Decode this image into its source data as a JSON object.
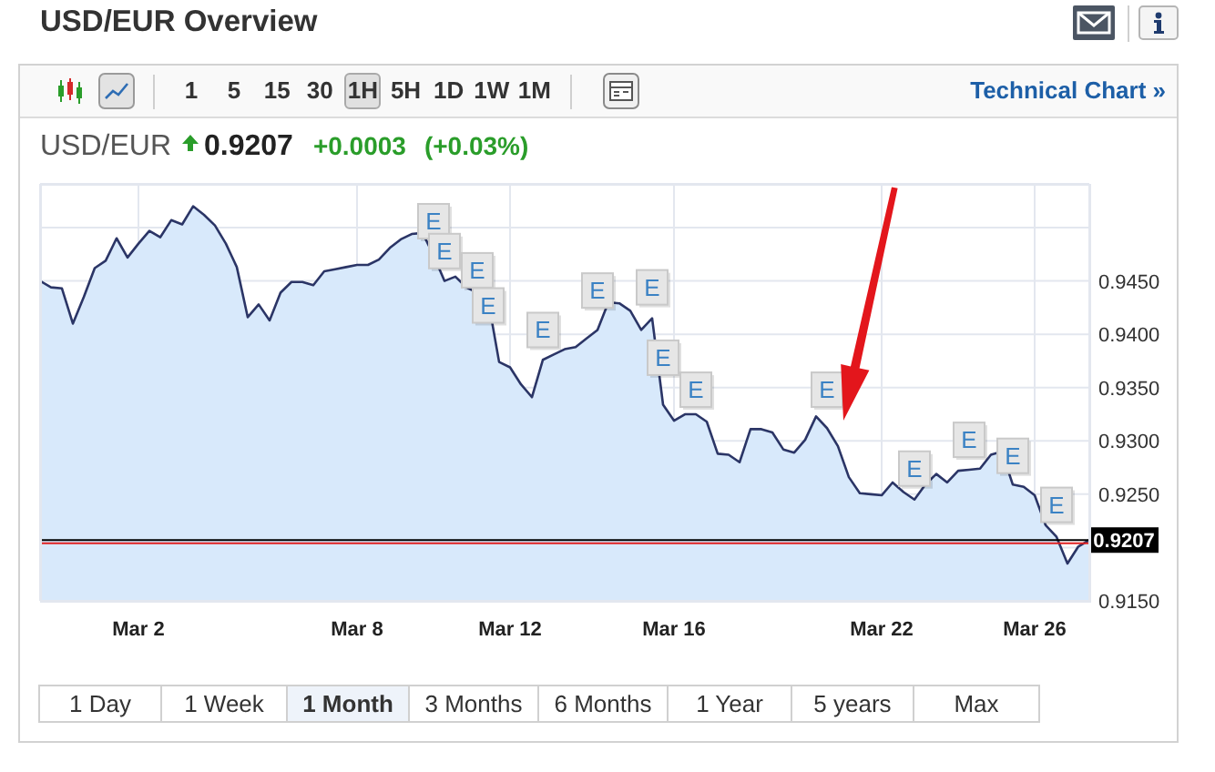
{
  "chart_data": {
    "type": "area",
    "title": "USD/EUR Overview",
    "annotations": [
      "1 5 15 30 1H 5H 1D 1W 1M",
      "Technical Chart »",
      "USD/EUR",
      "0.9207",
      "+0.0003",
      "(+0.03%)",
      "1 Day",
      "1 Week",
      "1 Month",
      "3 Months",
      "6 Months",
      "1 Year",
      "5 years",
      "Max"
    ],
    "categories": [
      null,
      null,
      null,
      null,
      null,
      null,
      null,
      null,
      null,
      "Mar 2",
      null,
      null,
      null,
      null,
      null,
      null,
      null,
      null,
      null,
      null,
      null,
      null,
      null,
      null,
      null,
      null,
      null,
      null,
      null,
      "Mar 8",
      null,
      null,
      null,
      null,
      null,
      null,
      null,
      null,
      null,
      null,
      null,
      null,
      null,
      "Mar 12",
      null,
      null,
      null,
      null,
      null,
      null,
      null,
      null,
      null,
      null,
      null,
      null,
      null,
      null,
      "Mar 16",
      null,
      null,
      null,
      null,
      null,
      null,
      null,
      null,
      null,
      null,
      null,
      null,
      null,
      null,
      null,
      null,
      null,
      null,
      "Mar 22",
      null,
      null,
      null,
      null,
      null,
      null,
      null,
      null,
      null,
      null,
      null,
      null,
      null,
      "Mar 26",
      null,
      null,
      null,
      null,
      null
    ],
    "series": [
      {
        "color": "#2b3566",
        "values": [
          0.945,
          0.9444,
          0.9443,
          0.941,
          0.9435,
          0.9462,
          0.9469,
          0.949,
          0.9472,
          0.9485,
          0.9497,
          0.9491,
          0.9507,
          0.9503,
          0.952,
          0.9512,
          0.9502,
          0.9485,
          0.9463,
          0.9416,
          0.9428,
          0.9413,
          0.9439,
          0.9449,
          0.9449,
          0.9446,
          0.9459,
          0.9461,
          0.9463,
          0.9465,
          0.9465,
          0.947,
          0.9481,
          0.9489,
          0.9494,
          0.9495,
          0.9474,
          0.945,
          0.9454,
          0.9444,
          0.9439,
          0.9432,
          0.9374,
          0.9369,
          0.9353,
          0.9341,
          0.9376,
          0.9381,
          0.9386,
          0.9388,
          0.9396,
          0.9404,
          0.943,
          0.9429,
          0.9422,
          0.9404,
          0.9415,
          0.9334,
          0.9319,
          0.9325,
          0.9325,
          0.9318,
          0.9288,
          0.9287,
          0.928,
          0.9311,
          0.9311,
          0.9308,
          0.9292,
          0.9289,
          0.9301,
          0.9323,
          0.9312,
          0.9295,
          0.9266,
          0.9251,
          0.925,
          0.9249,
          0.9261,
          0.9252,
          0.9245,
          0.9259,
          0.9269,
          0.9261,
          0.9272,
          0.9273,
          0.9274,
          0.9287,
          0.929,
          0.9259,
          0.9257,
          0.9249,
          0.9221,
          0.921,
          0.9185,
          0.9201,
          0.9207
        ]
      },
      {
        "type": "scatter",
        "color": "#e6e6e6",
        "marker": "square",
        "values": [
          null,
          null,
          null,
          null,
          null,
          null,
          null,
          null,
          null,
          null,
          null,
          null,
          null,
          null,
          null,
          null,
          null,
          null,
          null,
          null,
          null,
          null,
          null,
          null,
          null,
          null,
          null,
          null,
          null,
          null,
          null,
          null,
          null,
          null,
          null,
          null,
          0.9506,
          0.9478,
          null,
          null,
          0.946,
          0.9427,
          null,
          null,
          null,
          null,
          0.9404,
          null,
          null,
          null,
          null,
          0.9441,
          null,
          null,
          null,
          null,
          0.9444,
          0.9378,
          null,
          null,
          0.9348,
          null,
          null,
          null,
          null,
          null,
          null,
          null,
          null,
          null,
          null,
          null,
          0.9348,
          null,
          null,
          null,
          null,
          null,
          null,
          null,
          0.9274,
          null,
          null,
          null,
          null,
          0.9301,
          null,
          null,
          null,
          0.9286,
          null,
          null,
          null,
          0.924,
          null,
          null,
          null
        ],
        "value_labels": [
          null,
          null,
          null,
          null,
          null,
          null,
          null,
          null,
          null,
          null,
          null,
          null,
          null,
          null,
          null,
          null,
          null,
          null,
          null,
          null,
          null,
          null,
          null,
          null,
          null,
          null,
          null,
          null,
          null,
          null,
          null,
          null,
          null,
          null,
          null,
          null,
          "E",
          "E",
          null,
          null,
          "E",
          "E",
          null,
          null,
          null,
          null,
          "E",
          null,
          null,
          null,
          null,
          "E",
          null,
          null,
          null,
          null,
          "E",
          "E",
          null,
          null,
          "E",
          null,
          null,
          null,
          null,
          null,
          null,
          null,
          null,
          null,
          null,
          null,
          "E",
          null,
          null,
          null,
          null,
          null,
          null,
          null,
          "E",
          null,
          null,
          null,
          null,
          "E",
          null,
          null,
          null,
          "E",
          null,
          null,
          null,
          "E",
          null,
          null,
          null
        ]
      }
    ],
    "ylim": [
      0.915,
      0.9541
    ],
    "yticks": [
      {
        "value": 0.915,
        "label": "0.9150"
      },
      {
        "value": 0.92,
        "label": null
      },
      {
        "value": 0.925,
        "label": "0.9250"
      },
      {
        "value": 0.93,
        "label": "0.9300"
      },
      {
        "value": 0.935,
        "label": "0.9350"
      },
      {
        "value": 0.94,
        "label": "0.9400"
      },
      {
        "value": 0.945,
        "label": "0.9450"
      },
      {
        "value": 0.95,
        "label": null
      }
    ],
    "grid": true,
    "ref_lines": [
      {
        "axis": "y",
        "value": 0.9207,
        "label": "0.9207",
        "color": "#000000"
      },
      {
        "axis": "y",
        "value": 0.9204,
        "color": "#e02020"
      }
    ]
  }
}
